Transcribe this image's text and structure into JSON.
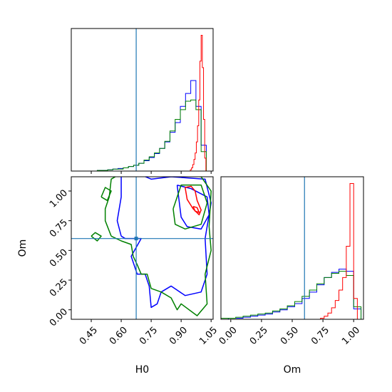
{
  "chart_data": [
    {
      "type": "histogram",
      "panel": "H0 marginal",
      "xlim": [
        0.35,
        1.06
      ],
      "truth": 0.675,
      "series": [
        {
          "color": "#0000ff",
          "edges": [
            0.35,
            0.376,
            0.402,
            0.428,
            0.454,
            0.48,
            0.506,
            0.532,
            0.558,
            0.584,
            0.61,
            0.636,
            0.662,
            0.688,
            0.714,
            0.74,
            0.766,
            0.792,
            0.818,
            0.844,
            0.87,
            0.896,
            0.922,
            0.948,
            0.974,
            1.0,
            1.026
          ],
          "values": [
            0,
            0,
            0,
            0,
            0,
            1,
            1,
            2,
            3,
            4,
            5,
            7,
            9,
            12,
            16,
            21,
            27,
            35,
            45,
            60,
            75,
            100,
            120,
            140,
            100,
            40
          ]
        },
        {
          "color": "#008000",
          "edges": [
            0.35,
            0.376,
            0.402,
            0.428,
            0.454,
            0.48,
            0.506,
            0.532,
            0.558,
            0.584,
            0.61,
            0.636,
            0.662,
            0.688,
            0.714,
            0.74,
            0.766,
            0.792,
            0.818,
            0.844,
            0.87,
            0.896,
            0.922,
            0.948,
            0.974,
            1.0,
            1.026
          ],
          "values": [
            0,
            0,
            0,
            0,
            0,
            1,
            1,
            2,
            3,
            3,
            5,
            7,
            9,
            12,
            17,
            22,
            28,
            35,
            46,
            62,
            80,
            95,
            108,
            110,
            95,
            30
          ]
        },
        {
          "color": "#ff0000",
          "edges": [
            0.94,
            0.946,
            0.952,
            0.958,
            0.964,
            0.97,
            0.976,
            0.982,
            0.988,
            0.994,
            1.0,
            1.006,
            1.012,
            1.018,
            1.024,
            1.03
          ],
          "values": [
            0,
            2,
            5,
            10,
            18,
            28,
            45,
            70,
            110,
            170,
            210,
            160,
            80,
            20,
            0
          ]
        }
      ]
    },
    {
      "type": "histogram",
      "panel": "Om marginal",
      "xlim": [
        -0.08,
        1.08
      ],
      "truth": 0.6,
      "series": [
        {
          "color": "#0000ff",
          "edges": [
            -0.08,
            -0.02,
            0.04,
            0.1,
            0.16,
            0.22,
            0.28,
            0.34,
            0.4,
            0.46,
            0.52,
            0.58,
            0.64,
            0.7,
            0.76,
            0.82,
            0.88,
            0.94,
            1.0,
            1.06
          ],
          "values": [
            0,
            1,
            1,
            2,
            3,
            4,
            5,
            7,
            9,
            12,
            15,
            20,
            26,
            33,
            40,
            45,
            48,
            46,
            10
          ]
        },
        {
          "color": "#008000",
          "edges": [
            -0.08,
            -0.02,
            0.04,
            0.1,
            0.16,
            0.22,
            0.28,
            0.34,
            0.4,
            0.46,
            0.52,
            0.58,
            0.64,
            0.7,
            0.76,
            0.82,
            0.88,
            0.94,
            1.0,
            1.06
          ],
          "values": [
            1,
            1,
            2,
            3,
            4,
            5,
            6,
            8,
            10,
            13,
            17,
            22,
            28,
            34,
            40,
            44,
            46,
            42,
            12
          ]
        },
        {
          "color": "#ff0000",
          "edges": [
            0.7,
            0.73,
            0.76,
            0.79,
            0.82,
            0.85,
            0.88,
            0.91,
            0.94,
            0.97,
            1.0,
            1.03
          ],
          "values": [
            0,
            1,
            3,
            6,
            11,
            18,
            28,
            40,
            70,
            130,
            20
          ]
        }
      ]
    },
    {
      "type": "contour",
      "panel": "H0 vs Om",
      "xlim": [
        0.35,
        1.06
      ],
      "ylim": [
        -0.08,
        1.12
      ],
      "truth": {
        "x": 0.675,
        "y": 0.6
      },
      "xlabel": "H0",
      "ylabel": "Om",
      "xticks": [
        "0.45",
        "0.60",
        "0.75",
        "0.90",
        "1.05"
      ],
      "yticks": [
        "0.00",
        "0.25",
        "0.50",
        "0.75",
        "1.00"
      ],
      "series": [
        {
          "color": "#0000ff",
          "contours": [
            [
              [
                0.6,
                0.62
              ],
              [
                0.58,
                0.75
              ],
              [
                0.6,
                0.95
              ],
              [
                0.6,
                1.12
              ],
              [
                0.68,
                1.15
              ],
              [
                0.75,
                1.1
              ],
              [
                0.85,
                1.12
              ],
              [
                1.02,
                1.1
              ],
              [
                1.05,
                0.9
              ],
              [
                1.02,
                0.6
              ],
              [
                1.03,
                0.3
              ],
              [
                1.0,
                0.15
              ],
              [
                0.92,
                0.12
              ],
              [
                0.85,
                0.2
              ],
              [
                0.8,
                0.15
              ],
              [
                0.78,
                0.05
              ],
              [
                0.75,
                0.02
              ],
              [
                0.74,
                0.2
              ],
              [
                0.72,
                0.3
              ],
              [
                0.68,
                0.3
              ],
              [
                0.65,
                0.45
              ],
              [
                0.7,
                0.6
              ],
              [
                0.62,
                0.6
              ],
              [
                0.6,
                0.62
              ]
            ],
            [
              [
                0.88,
                1.05
              ],
              [
                0.9,
                0.78
              ],
              [
                0.93,
                0.7
              ],
              [
                1.0,
                0.68
              ],
              [
                1.04,
                0.8
              ],
              [
                1.03,
                0.95
              ],
              [
                0.95,
                1.02
              ],
              [
                0.88,
                1.05
              ]
            ]
          ]
        },
        {
          "color": "#008000",
          "contours": [
            [
              [
                0.55,
                0.62
              ],
              [
                0.52,
                0.75
              ],
              [
                0.52,
                0.85
              ],
              [
                0.54,
                0.95
              ],
              [
                0.55,
                1.1
              ],
              [
                0.6,
                1.15
              ],
              [
                0.68,
                1.13
              ],
              [
                0.8,
                1.15
              ],
              [
                1.0,
                1.12
              ],
              [
                1.05,
                1.0
              ],
              [
                1.04,
                0.7
              ],
              [
                1.05,
                0.5
              ],
              [
                1.02,
                0.3
              ],
              [
                1.03,
                0.05
              ],
              [
                0.98,
                -0.05
              ],
              [
                0.9,
                0.05
              ],
              [
                0.88,
                0.0
              ],
              [
                0.85,
                0.1
              ],
              [
                0.8,
                0.15
              ],
              [
                0.75,
                0.18
              ],
              [
                0.73,
                0.3
              ],
              [
                0.7,
                0.3
              ],
              [
                0.68,
                0.38
              ],
              [
                0.66,
                0.45
              ],
              [
                0.65,
                0.55
              ],
              [
                0.6,
                0.58
              ],
              [
                0.55,
                0.62
              ]
            ],
            [
              [
                0.86,
                0.85
              ],
              [
                0.88,
                0.95
              ],
              [
                0.9,
                1.05
              ],
              [
                1.0,
                1.05
              ],
              [
                1.03,
                0.9
              ],
              [
                1.0,
                0.72
              ],
              [
                0.92,
                0.68
              ],
              [
                0.87,
                0.72
              ],
              [
                0.86,
                0.85
              ]
            ],
            [
              [
                0.45,
                0.62
              ],
              [
                0.48,
                0.58
              ],
              [
                0.5,
                0.62
              ],
              [
                0.47,
                0.65
              ],
              [
                0.45,
                0.62
              ]
            ],
            [
              [
                0.5,
                0.95
              ],
              [
                0.53,
                0.92
              ],
              [
                0.55,
                1.0
              ],
              [
                0.52,
                1.03
              ],
              [
                0.5,
                0.95
              ]
            ]
          ]
        },
        {
          "color": "#ff0000",
          "contours": [
            [
              [
                0.92,
                1.03
              ],
              [
                0.93,
                0.93
              ],
              [
                0.96,
                0.85
              ],
              [
                0.99,
                0.8
              ],
              [
                1.0,
                0.84
              ],
              [
                0.98,
                0.92
              ],
              [
                0.97,
                1.0
              ],
              [
                0.95,
                1.04
              ],
              [
                0.92,
                1.03
              ]
            ],
            [
              [
                0.96,
                0.87
              ],
              [
                0.97,
                0.83
              ],
              [
                0.99,
                0.82
              ],
              [
                0.98,
                0.86
              ],
              [
                0.96,
                0.87
              ]
            ]
          ]
        }
      ]
    }
  ]
}
